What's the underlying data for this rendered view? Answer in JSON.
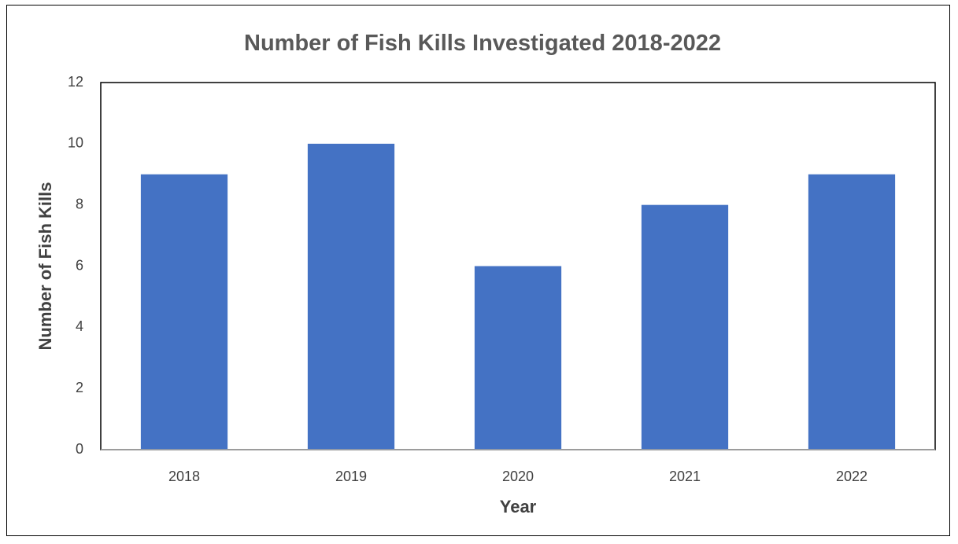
{
  "chart_data": {
    "type": "bar",
    "title": "Number of Fish Kills Investigated 2018-2022",
    "xlabel": "Year",
    "ylabel": "Number of Fish Kills",
    "categories": [
      "2018",
      "2019",
      "2020",
      "2021",
      "2022"
    ],
    "values": [
      9,
      10,
      6,
      8,
      9
    ],
    "ylim": [
      0,
      12
    ],
    "yticks": [
      0,
      2,
      4,
      6,
      8,
      10,
      12
    ],
    "grid": false,
    "legend": "none",
    "bar_color": "#4472C4"
  }
}
